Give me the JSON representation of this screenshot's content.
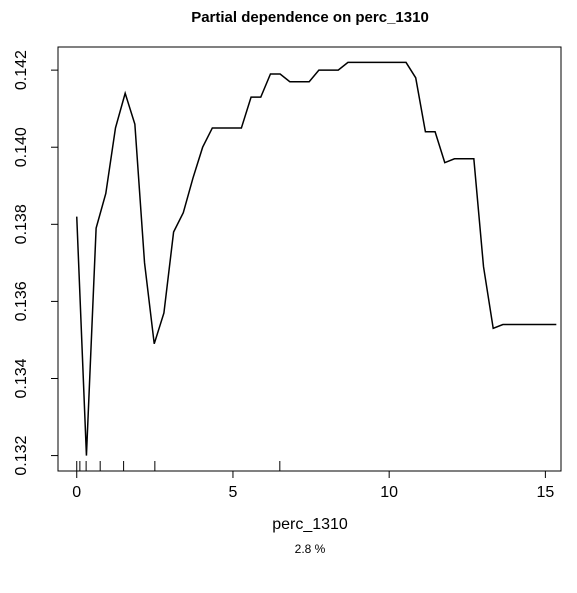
{
  "chart_data": {
    "type": "line",
    "title": "Partial dependence on perc_1310",
    "xlabel": "perc_1310",
    "subtitle": "2.8 %",
    "x": [
      0,
      0.31,
      0.62,
      0.93,
      1.24,
      1.55,
      1.86,
      2.17,
      2.48,
      2.79,
      3.1,
      3.41,
      3.72,
      4.03,
      4.34,
      4.65,
      4.96,
      5.27,
      5.58,
      5.89,
      6.2,
      6.51,
      6.82,
      7.13,
      7.44,
      7.75,
      8.06,
      8.37,
      8.68,
      8.99,
      9.3,
      9.61,
      9.92,
      10.23,
      10.54,
      10.85,
      11.16,
      11.47,
      11.78,
      12.09,
      12.4,
      12.71,
      13.02,
      13.33,
      13.64,
      13.95,
      14.26,
      14.57,
      14.88,
      15.35
    ],
    "series": [
      {
        "color": "#000000",
        "values": [
          0.1382,
          0.132,
          0.1379,
          0.1388,
          0.1405,
          0.1414,
          0.1406,
          0.137,
          0.1349,
          0.1357,
          0.1378,
          0.1383,
          0.1392,
          0.14,
          0.1405,
          0.1405,
          0.1405,
          0.1405,
          0.1413,
          0.1413,
          0.1419,
          0.1419,
          0.1417,
          0.1417,
          0.1417,
          0.142,
          0.142,
          0.142,
          0.1422,
          0.1422,
          0.1422,
          0.1422,
          0.1422,
          0.1422,
          0.1422,
          0.1418,
          0.1404,
          0.1404,
          0.1396,
          0.1397,
          0.1397,
          0.1397,
          0.1369,
          0.1353,
          0.1354,
          0.1354,
          0.1354,
          0.1354,
          0.1354,
          0.1354
        ]
      }
    ],
    "rug": [
      0,
      0.1,
      0.3,
      0.75,
      1.5,
      2.5,
      6.5
    ],
    "xlim": [
      -0.6,
      15.5
    ],
    "xticks": [
      0,
      5,
      10,
      15
    ],
    "ylim": [
      0.1316,
      0.1426
    ],
    "yticks": [
      0.132,
      0.134,
      0.136,
      0.138,
      {
        "value": 0.14,
        "label": "0.140"
      },
      0.142
    ]
  }
}
